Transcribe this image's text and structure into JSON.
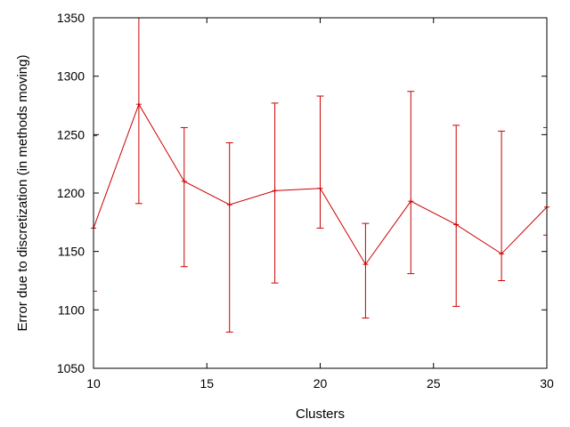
{
  "chart_data": {
    "type": "line",
    "xlabel": "Clusters",
    "ylabel": "Error due to discretization (in methods moving)",
    "xlim": [
      10,
      30
    ],
    "ylim": [
      1050,
      1350
    ],
    "xticks": [
      10,
      15,
      20,
      25,
      30
    ],
    "yticks": [
      1050,
      1100,
      1150,
      1200,
      1250,
      1300,
      1350
    ],
    "grid": false,
    "legend": "none",
    "series": [
      {
        "color": "#cc0000",
        "x": [
          10,
          12,
          14,
          16,
          18,
          20,
          22,
          24,
          26,
          28,
          30
        ],
        "y": [
          1170,
          1276,
          1210,
          1190,
          1202,
          1204,
          1139,
          1193,
          1173,
          1148,
          1188
        ],
        "err_low": [
          1116,
          1191,
          1137,
          1081,
          1123,
          1170,
          1093,
          1131,
          1103,
          1125,
          1164
        ],
        "err_high": [
          1249,
          1350,
          1256,
          1243,
          1277,
          1283,
          1174,
          1287,
          1258,
          1253,
          1256
        ]
      }
    ]
  }
}
